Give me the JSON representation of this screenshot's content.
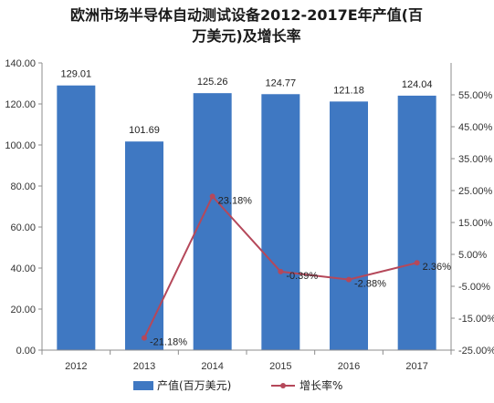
{
  "chart_data": {
    "type": "bar",
    "title_line1": "欧洲市场半导体自动测试设备2012-2017E年产值(百",
    "title_line2": "万美元)及增长率",
    "categories": [
      "2012",
      "2013",
      "2014",
      "2015",
      "2016",
      "2017"
    ],
    "series": [
      {
        "name": "产值(百万美元)",
        "type": "bar",
        "axis": "left",
        "values": [
          129.01,
          101.69,
          125.26,
          124.77,
          121.18,
          124.04
        ],
        "labels": [
          "129.01",
          "101.69",
          "125.26",
          "124.77",
          "121.18",
          "124.04"
        ],
        "color": "#3f78c2"
      },
      {
        "name": "增长率%",
        "type": "line",
        "axis": "right",
        "values": [
          null,
          -21.18,
          23.18,
          -0.39,
          -2.88,
          2.36
        ],
        "labels": [
          "",
          "-21.18%",
          "23.18%",
          "-0.39%",
          "-2.88%",
          "2.36%"
        ],
        "color": "#b5485a"
      }
    ],
    "left_axis": {
      "ylim": [
        0,
        140
      ],
      "ticks": [
        0,
        20,
        40,
        60,
        80,
        100,
        120,
        140
      ],
      "tick_labels": [
        "0.00",
        "20.00",
        "40.00",
        "60.00",
        "80.00",
        "100.00",
        "120.00",
        "140.00"
      ]
    },
    "right_axis": {
      "ylim": [
        -25,
        65
      ],
      "ticks": [
        -25,
        -15,
        -5,
        5,
        15,
        25,
        35,
        45,
        55
      ],
      "tick_labels": [
        "-25.00%",
        "-15.00%",
        "-5.00%",
        "5.00%",
        "15.00%",
        "25.00%",
        "35.00%",
        "45.00%",
        "55.00%"
      ]
    },
    "legend_position": "bottom",
    "grid": false
  }
}
